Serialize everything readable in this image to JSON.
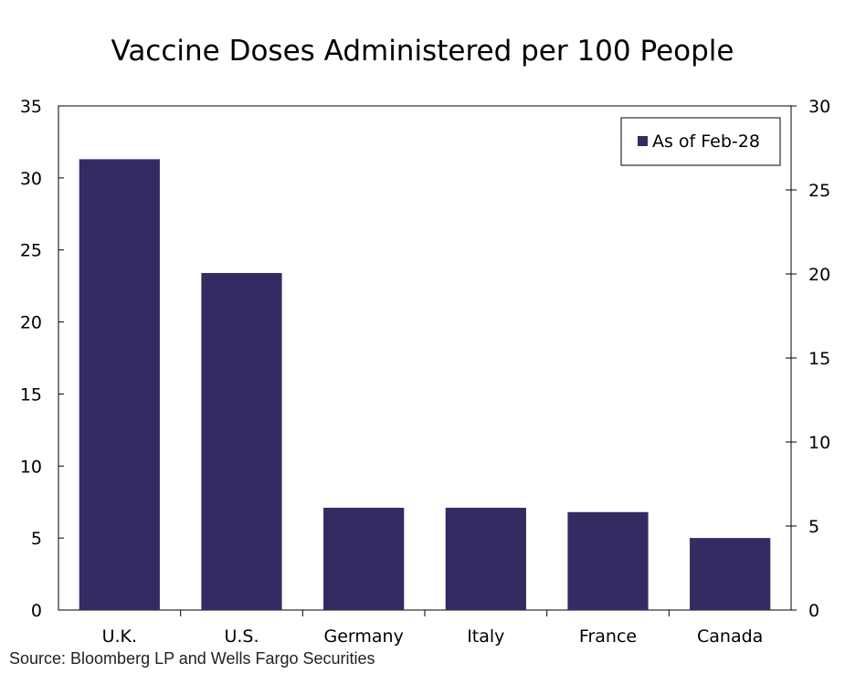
{
  "chart_data": {
    "type": "bar",
    "title": "Vaccine Doses Administered per 100 People",
    "categories": [
      "U.K.",
      "U.S.",
      "Germany",
      "Italy",
      "France",
      "Canada"
    ],
    "series": [
      {
        "name": "As of Feb-28",
        "values": [
          31.3,
          23.4,
          7.1,
          7.1,
          6.8,
          5.0
        ],
        "color": "#342b63"
      }
    ],
    "ylim": [
      0,
      35
    ],
    "yticks": [
      0,
      5,
      10,
      15,
      20,
      25,
      30,
      35
    ],
    "y2lim": [
      0,
      30
    ],
    "y2ticks": [
      0,
      5,
      10,
      15,
      20,
      25,
      30
    ],
    "grid": false,
    "legend_position": "top-right"
  },
  "source": "Source: Bloomberg LP and Wells Fargo Securities"
}
